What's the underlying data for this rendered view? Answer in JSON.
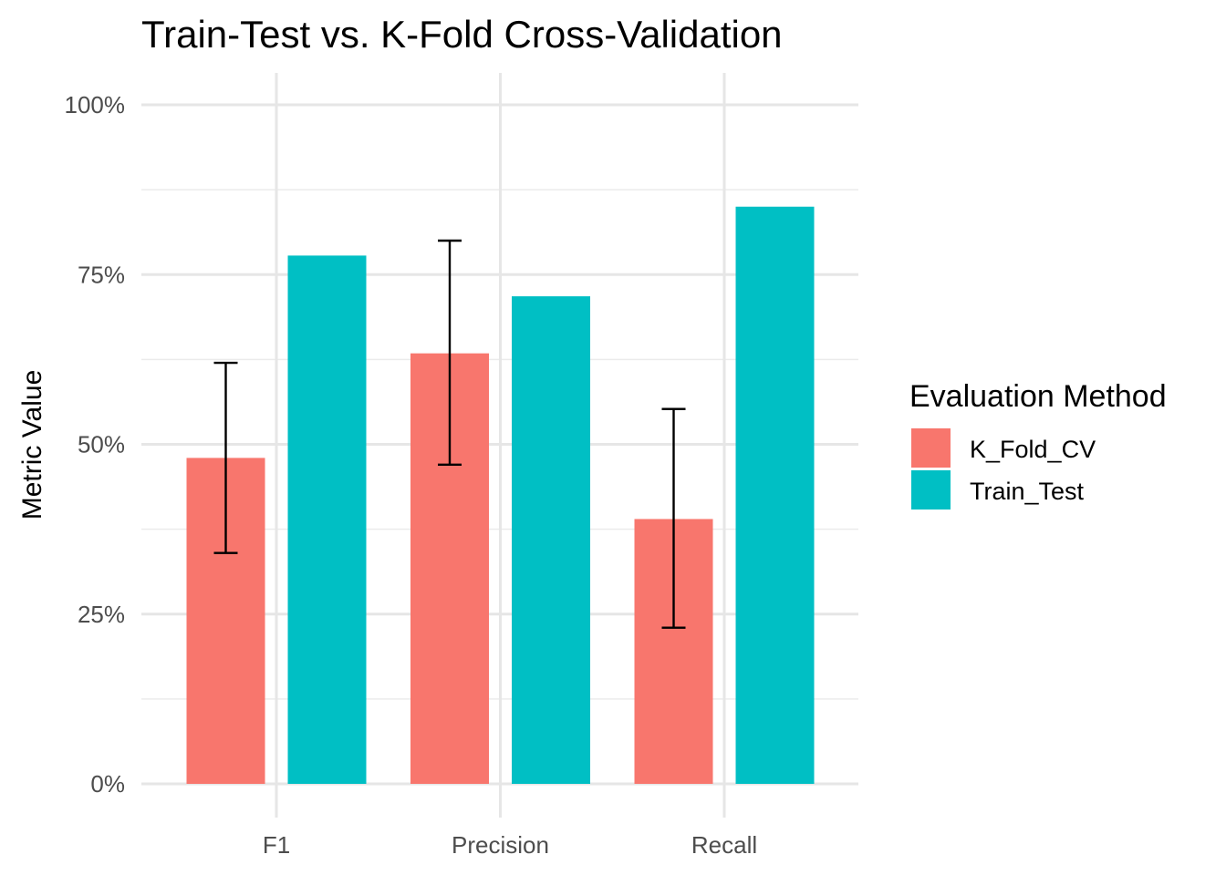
{
  "chart_data": {
    "type": "bar",
    "title": "Train-Test vs. K-Fold Cross-Validation",
    "xlabel": "",
    "ylabel": "Metric Value",
    "categories": [
      "F1",
      "Precision",
      "Recall"
    ],
    "ylim": [
      0,
      1
    ],
    "y_ticks": [
      0,
      0.25,
      0.5,
      0.75,
      1.0
    ],
    "y_tick_labels": [
      "0%",
      "25%",
      "50%",
      "75%",
      "100%"
    ],
    "grid": true,
    "legend": {
      "title": "Evaluation Method",
      "position": "right"
    },
    "series": [
      {
        "name": "K_Fold_CV",
        "color": "#F8766D",
        "values": [
          0.48,
          0.634,
          0.39
        ],
        "error_low": [
          0.34,
          0.47,
          0.23
        ],
        "error_high": [
          0.62,
          0.8,
          0.552
        ]
      },
      {
        "name": "Train_Test",
        "color": "#00BFC4",
        "values": [
          0.778,
          0.718,
          0.85
        ]
      }
    ]
  }
}
